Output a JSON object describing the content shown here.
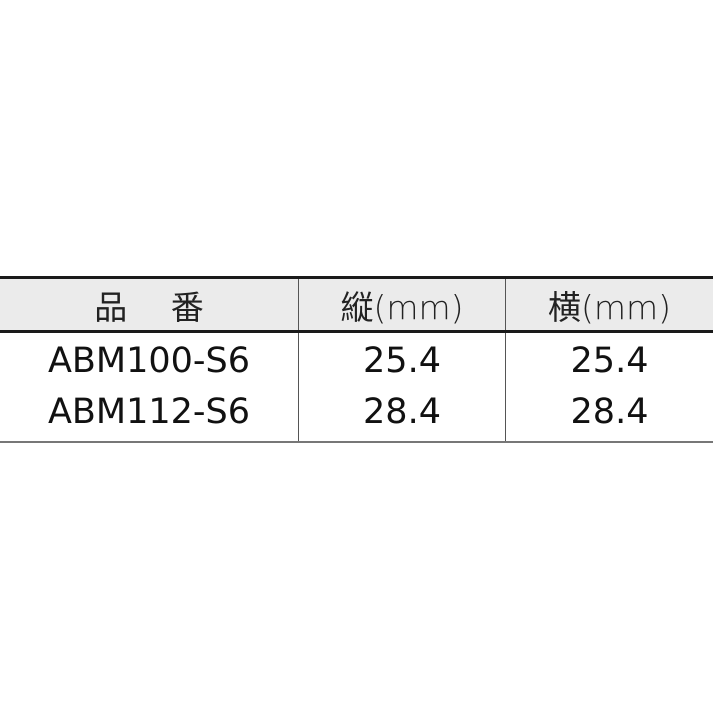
{
  "table": {
    "headers": [
      "品　 番",
      "縦(mm)",
      "横(mm)"
    ],
    "rows": [
      [
        "ABM100-S6",
        "25.4",
        "25.4"
      ],
      [
        "ABM112-S6",
        "28.4",
        "28.4"
      ]
    ]
  }
}
